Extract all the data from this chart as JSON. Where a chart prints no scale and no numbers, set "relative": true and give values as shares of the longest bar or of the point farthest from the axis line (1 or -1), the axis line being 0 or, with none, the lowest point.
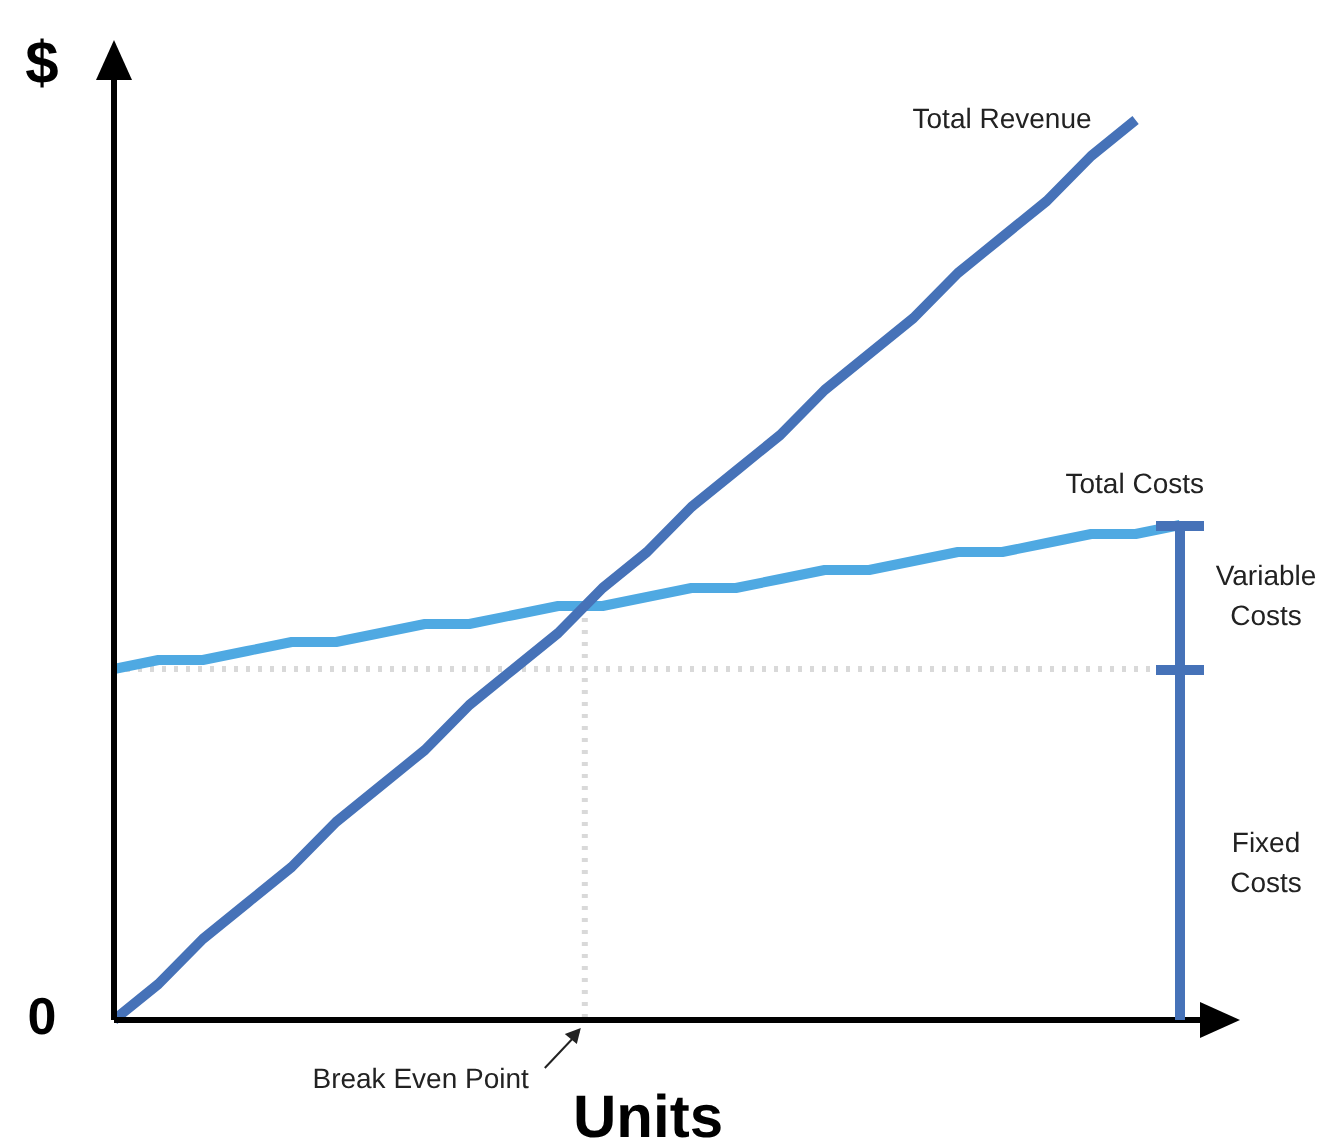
{
  "chart_data": {
    "type": "line",
    "relative": true,
    "xlabel": "Units",
    "ylabel": "$",
    "categories": [
      null,
      null,
      null,
      null,
      null,
      null,
      null,
      null,
      null,
      null,
      null,
      null,
      null,
      null,
      null,
      null,
      null,
      null,
      null,
      null,
      null,
      null,
      null,
      null,
      null
    ],
    "series": [
      {
        "name": "Total Revenue",
        "color": "#4672b8",
        "values": [
          0,
          0.04,
          0.09,
          0.13,
          0.17,
          0.22,
          0.26,
          0.3,
          0.35,
          0.39,
          0.43,
          0.48,
          0.52,
          0.57,
          0.61,
          0.65,
          0.7,
          0.74,
          0.78,
          0.83,
          0.87,
          0.91,
          0.96,
          1,
          null
        ]
      },
      {
        "name": "Total Costs",
        "color": "#4fa9e2",
        "values": [
          0.39,
          0.4,
          0.4,
          0.41,
          0.42,
          0.42,
          0.43,
          0.44,
          0.44,
          0.45,
          0.46,
          0.46,
          0.47,
          0.48,
          0.48,
          0.49,
          0.5,
          0.5,
          0.51,
          0.52,
          0.52,
          0.53,
          0.54,
          0.54,
          0.55
        ]
      }
    ],
    "ref_lines": [
      {
        "axis": "y",
        "value": 0.39,
        "color": "#d9d9d9",
        "line_style": "dotted"
      }
    ],
    "annotations": [
      "0",
      "Break Even Point",
      "Variable Costs",
      "Fixed Costs"
    ],
    "legend": false,
    "marker": "none",
    "line_style": "solid"
  }
}
